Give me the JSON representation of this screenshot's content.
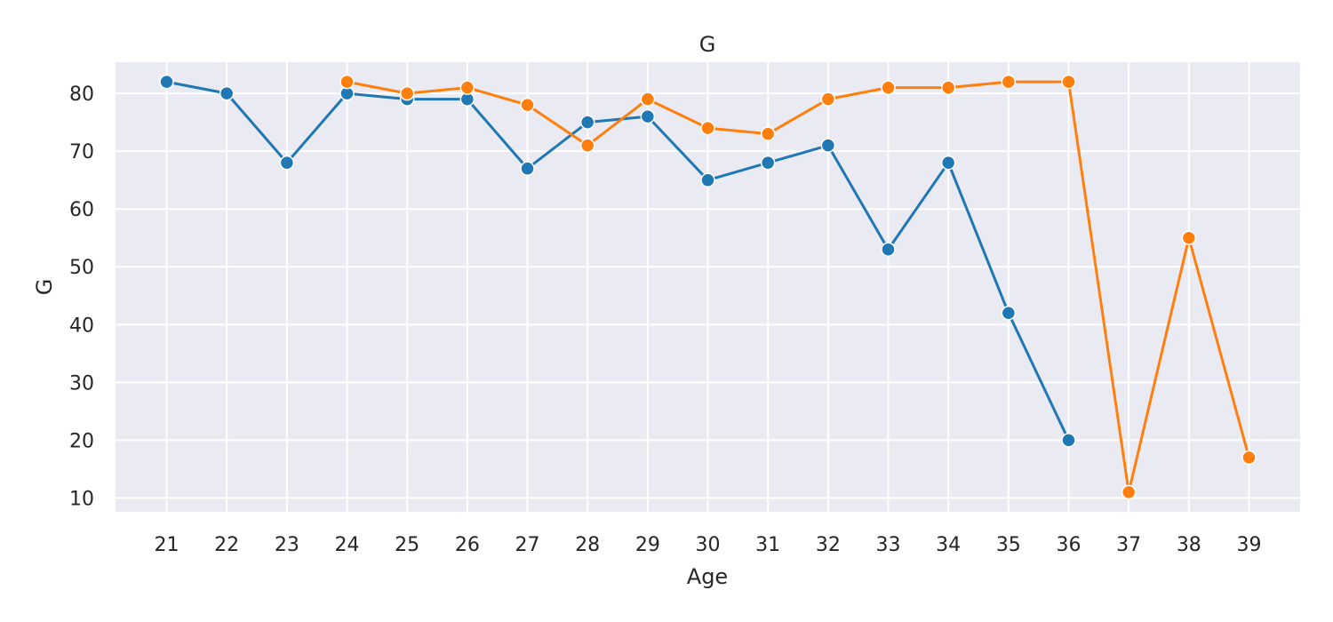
{
  "chart_data": {
    "type": "line",
    "title": "G",
    "xlabel": "Age",
    "ylabel": "G",
    "x": [
      21,
      22,
      23,
      24,
      25,
      26,
      27,
      28,
      29,
      30,
      31,
      32,
      33,
      34,
      35,
      36,
      37,
      38,
      39
    ],
    "xlim": [
      20.15,
      39.85
    ],
    "ylim": [
      7.6,
      85.4
    ],
    "yticks": [
      10,
      20,
      30,
      40,
      50,
      60,
      70,
      80
    ],
    "grid": true,
    "legend": "none",
    "background": "#eaeaf2",
    "series": [
      {
        "color": "#1f77b4",
        "points": [
          [
            21,
            82
          ],
          [
            22,
            80
          ],
          [
            23,
            68
          ],
          [
            24,
            80
          ],
          [
            25,
            79
          ],
          [
            26,
            79
          ],
          [
            27,
            67
          ],
          [
            28,
            75
          ],
          [
            29,
            76
          ],
          [
            30,
            65
          ],
          [
            31,
            68
          ],
          [
            32,
            71
          ],
          [
            33,
            53
          ],
          [
            34,
            68
          ],
          [
            35,
            42
          ],
          [
            36,
            20
          ]
        ]
      },
      {
        "color": "#ff7f0e",
        "points": [
          [
            24,
            82
          ],
          [
            25,
            80
          ],
          [
            26,
            81
          ],
          [
            27,
            78
          ],
          [
            28,
            71
          ],
          [
            29,
            79
          ],
          [
            30,
            74
          ],
          [
            31,
            73
          ],
          [
            32,
            79
          ],
          [
            33,
            81
          ],
          [
            34,
            81
          ],
          [
            35,
            82
          ],
          [
            36,
            82
          ],
          [
            37,
            11
          ],
          [
            38,
            55
          ],
          [
            39,
            17
          ]
        ]
      }
    ]
  }
}
